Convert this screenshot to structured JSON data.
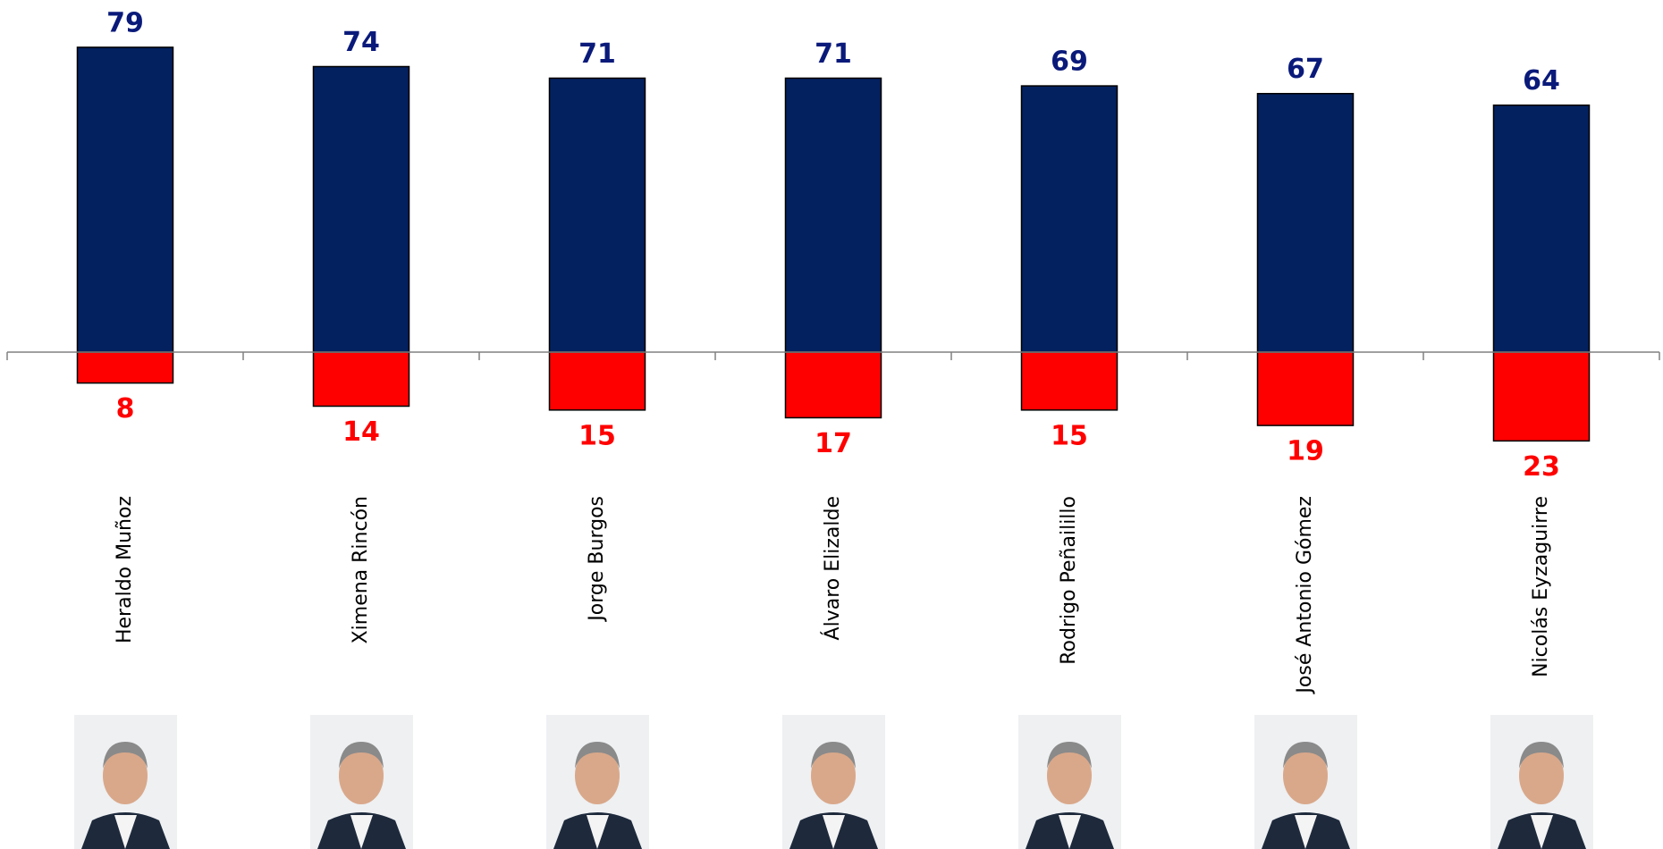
{
  "chart_data": {
    "type": "diverging-bar",
    "categories": [
      "Heraldo Muñoz",
      "Ximena Rincón",
      "Jorge Burgos",
      "Álvaro Elizalde",
      "Rodrigo Peñailillo",
      "José Antonio Gómez",
      "Nicolás Eyzaguirre"
    ],
    "series": [
      {
        "color": "#03215f",
        "label_color": "#0a1a7a",
        "values": [
          79,
          74,
          71,
          71,
          69,
          67,
          64
        ]
      },
      {
        "color": "#ff0000",
        "label_color": "#ff0000",
        "values": [
          -8,
          -14,
          -15,
          -17,
          -15,
          -19,
          -23
        ],
        "value_labels": [
          "8",
          "14",
          "15",
          "17",
          "15",
          "19",
          "23"
        ]
      }
    ],
    "ylim": [
      -25,
      85
    ]
  }
}
